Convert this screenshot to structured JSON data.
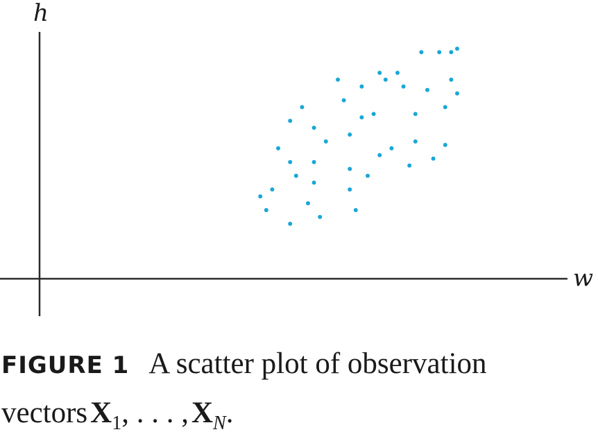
{
  "chart_data": {
    "type": "scatter",
    "xlabel": "w",
    "ylabel": "h",
    "point_color": "#1aa7d6",
    "axis_color": "#2a2a2a",
    "points": [
      [
        3.7,
        1.2
      ],
      [
        3.8,
        1.0
      ],
      [
        3.9,
        1.3
      ],
      [
        4.0,
        1.9
      ],
      [
        4.2,
        0.8
      ],
      [
        4.2,
        1.7
      ],
      [
        4.2,
        2.3
      ],
      [
        4.3,
        1.5
      ],
      [
        4.4,
        2.5
      ],
      [
        4.5,
        1.1
      ],
      [
        4.6,
        1.7
      ],
      [
        4.6,
        2.2
      ],
      [
        4.6,
        1.4
      ],
      [
        4.7,
        0.9
      ],
      [
        4.8,
        2.0
      ],
      [
        5.0,
        2.9
      ],
      [
        5.1,
        2.6
      ],
      [
        5.2,
        1.3
      ],
      [
        5.2,
        1.6
      ],
      [
        5.2,
        2.1
      ],
      [
        5.3,
        1.0
      ],
      [
        5.4,
        2.8
      ],
      [
        5.4,
        2.35
      ],
      [
        5.5,
        1.5
      ],
      [
        5.6,
        2.4
      ],
      [
        5.7,
        3.0
      ],
      [
        5.7,
        1.8
      ],
      [
        5.8,
        2.9
      ],
      [
        5.9,
        1.9
      ],
      [
        6.0,
        3.0
      ],
      [
        6.1,
        2.8
      ],
      [
        6.2,
        1.65
      ],
      [
        6.3,
        2.0
      ],
      [
        6.3,
        2.4
      ],
      [
        6.4,
        3.3
      ],
      [
        6.5,
        2.75
      ],
      [
        6.6,
        1.75
      ],
      [
        6.7,
        3.3
      ],
      [
        6.8,
        1.95
      ],
      [
        6.8,
        2.5
      ],
      [
        6.9,
        3.3
      ],
      [
        6.9,
        2.9
      ],
      [
        7.0,
        3.35
      ],
      [
        7.0,
        2.7
      ]
    ]
  },
  "caption": {
    "figure_label": "FIGURE 1",
    "text": "A scatter plot of observation",
    "line2_prefix": "vectors",
    "vector_symbol": "X",
    "first_subscript": "1",
    "separator": ", . . . ,",
    "last_subscript": "N",
    "end": "."
  }
}
